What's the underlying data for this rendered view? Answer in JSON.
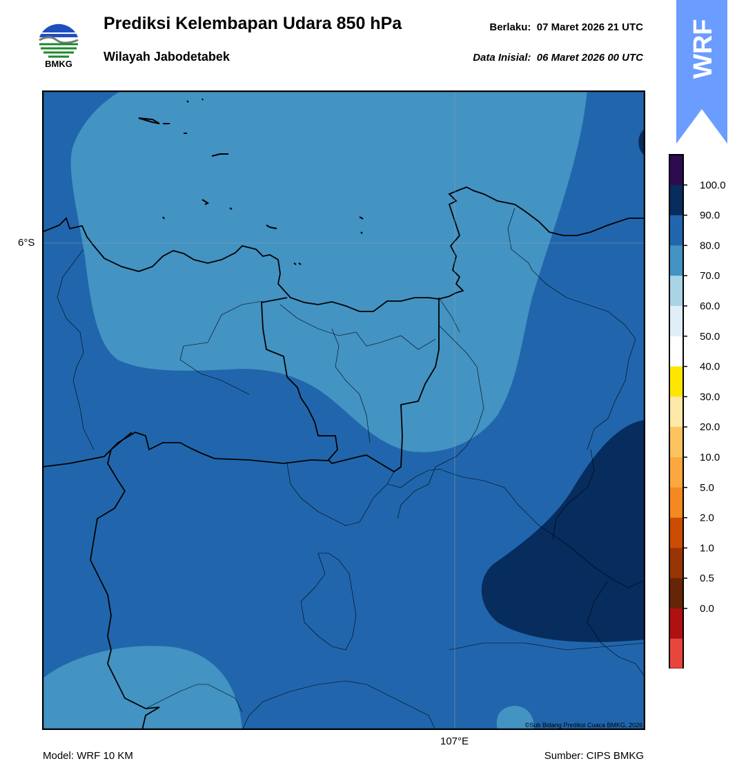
{
  "header": {
    "title": "Prediksi Kelembapan Udara 850 hPa",
    "subtitle": "Wilayah Jabodetabek",
    "valid_label": "Berlaku:",
    "valid_time": "07 Maret 2026 21 UTC",
    "init_label": "Data Inisial:",
    "init_time": "06 Maret 2026 00 UTC"
  },
  "logo": {
    "icon": "bmkg-logo-icon",
    "text": "BMKG"
  },
  "badge": {
    "text": "WRF",
    "color": "#6b9cff"
  },
  "map": {
    "lat_label": "6°S",
    "lon_label": "107°E",
    "credit": "©Sub Bidang Prediksi Cuaca BMKG, 2026"
  },
  "footer": {
    "model": "Model: WRF 10 KM",
    "source": "Sumber: CIPS BMKG"
  },
  "colorbar": {
    "levels": [
      {
        "label": "100.0",
        "color": "#2e0a4e"
      },
      {
        "label": "90.0",
        "color": "#072c5e"
      },
      {
        "label": "80.0",
        "color": "#2166ac"
      },
      {
        "label": "70.0",
        "color": "#4393c3"
      },
      {
        "label": "60.0",
        "color": "#a8d4e6"
      },
      {
        "label": "50.0",
        "color": "#dfeef7"
      },
      {
        "label": "40.0",
        "color": "#ffffff"
      },
      {
        "label": "30.0",
        "color": "#ffe600"
      },
      {
        "label": "20.0",
        "color": "#fee8a8"
      },
      {
        "label": "10.0",
        "color": "#fdc35e"
      },
      {
        "label": "5.0",
        "color": "#fca83e"
      },
      {
        "label": "2.0",
        "color": "#f4891f"
      },
      {
        "label": "1.0",
        "color": "#cc4c02"
      },
      {
        "label": "0.5",
        "color": "#993404"
      },
      {
        "label": "0.0",
        "color": "#662506"
      },
      {
        "label": "",
        "color": "#b01010"
      },
      {
        "label": "",
        "color": "#e8453c"
      }
    ]
  }
}
